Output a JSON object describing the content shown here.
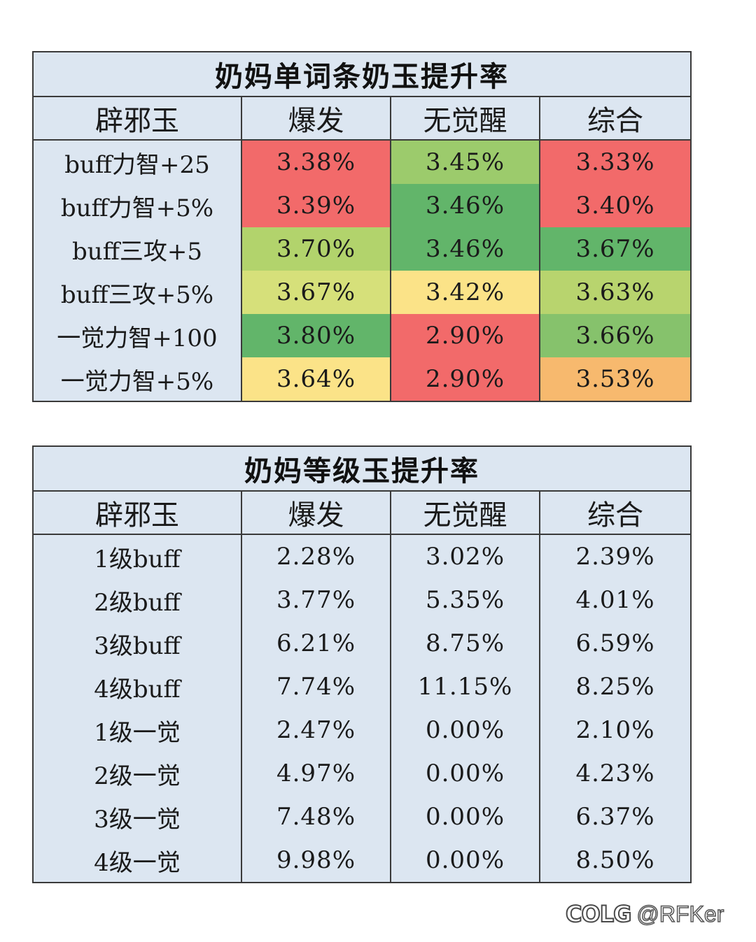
{
  "table1": {
    "title": "奶妈单词条奶玉提升率",
    "headers": [
      "辟邪玉",
      "爆发",
      "无觉醒",
      "综合"
    ],
    "rows": [
      {
        "label": "buff力智+25",
        "values": [
          "3.38%",
          "3.45%",
          "3.33%"
        ],
        "colors": [
          "#f26a6a",
          "#9ccb6c",
          "#f26a6a"
        ]
      },
      {
        "label": "buff力智+5%",
        "values": [
          "3.39%",
          "3.46%",
          "3.40%"
        ],
        "colors": [
          "#f26a6a",
          "#62b56a",
          "#f26a6a"
        ]
      },
      {
        "label": "buff三攻+5",
        "values": [
          "3.70%",
          "3.46%",
          "3.67%"
        ],
        "colors": [
          "#b2d36c",
          "#62b56a",
          "#62b56a"
        ]
      },
      {
        "label": "buff三攻+5%",
        "values": [
          "3.67%",
          "3.42%",
          "3.63%"
        ],
        "colors": [
          "#d6e07a",
          "#fbe388",
          "#b8d46e"
        ]
      },
      {
        "label": "一觉力智+100",
        "values": [
          "3.80%",
          "2.90%",
          "3.66%"
        ],
        "colors": [
          "#62b56a",
          "#f26a6a",
          "#86c26c"
        ]
      },
      {
        "label": "一觉力智+5%",
        "values": [
          "3.64%",
          "2.90%",
          "3.53%"
        ],
        "colors": [
          "#fbe388",
          "#f26a6a",
          "#f7b96e"
        ]
      }
    ]
  },
  "table2": {
    "title": "奶妈等级玉提升率",
    "headers": [
      "辟邪玉",
      "爆发",
      "无觉醒",
      "综合"
    ],
    "rows": [
      {
        "label": "1级buff",
        "values": [
          "2.28%",
          "3.02%",
          "2.39%"
        ]
      },
      {
        "label": "2级buff",
        "values": [
          "3.77%",
          "5.35%",
          "4.01%"
        ]
      },
      {
        "label": "3级buff",
        "values": [
          "6.21%",
          "8.75%",
          "6.59%"
        ]
      },
      {
        "label": "4级buff",
        "values": [
          "7.74%",
          "11.15%",
          "8.25%"
        ]
      },
      {
        "label": "1级一觉",
        "values": [
          "2.47%",
          "0.00%",
          "2.10%"
        ]
      },
      {
        "label": "2级一觉",
        "values": [
          "4.97%",
          "0.00%",
          "4.23%"
        ]
      },
      {
        "label": "3级一觉",
        "values": [
          "7.48%",
          "0.00%",
          "6.37%"
        ]
      },
      {
        "label": "4级一觉",
        "values": [
          "9.98%",
          "0.00%",
          "8.50%"
        ]
      }
    ]
  },
  "logo": {
    "mark": "COLG",
    "user": "@RFKer"
  },
  "colors": {
    "table_bg": "#dce6f1",
    "border": "#3a3a3a",
    "red": "#f26a6a",
    "green": "#62b56a",
    "yellow": "#fbe388",
    "orange": "#f7b96e"
  }
}
